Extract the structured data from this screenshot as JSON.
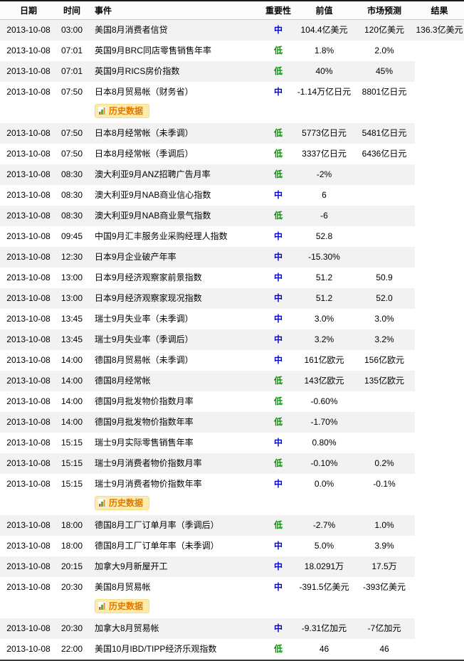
{
  "colors": {
    "importance_medium": "#0000cc",
    "importance_low": "#009900",
    "row_stripe": "#f2f2f2",
    "badge_background": "#fceba9",
    "badge_text": "#e07800"
  },
  "table": {
    "columns": {
      "date": "日期",
      "time": "时间",
      "event": "事件",
      "importance": "重要性",
      "previous": "前值",
      "forecast": "市场预测",
      "result": "结果"
    },
    "history_badge_label": "历史数据",
    "rows": [
      {
        "date": "2013-10-08",
        "time": "03:00",
        "event": "美国8月消费者信贷",
        "importance": "中",
        "previous": "104.4亿美元",
        "forecast": "120亿美元",
        "result": "136.3亿美元",
        "history": false
      },
      {
        "date": "2013-10-08",
        "time": "07:01",
        "event": "英国9月BRC同店零售销售年率",
        "importance": "低",
        "previous": "1.8%",
        "forecast": "2.0%",
        "result": "",
        "history": false
      },
      {
        "date": "2013-10-08",
        "time": "07:01",
        "event": "英国9月RICS房价指数",
        "importance": "低",
        "previous": "40%",
        "forecast": "45%",
        "result": "",
        "history": false
      },
      {
        "date": "2013-10-08",
        "time": "07:50",
        "event": "日本8月贸易帐（财务省）",
        "importance": "中",
        "previous": "-1.14万亿日元",
        "forecast": "8801亿日元",
        "result": "",
        "history": true
      },
      {
        "date": "2013-10-08",
        "time": "07:50",
        "event": "日本8月经常帐（未季调）",
        "importance": "低",
        "previous": "5773亿日元",
        "forecast": "5481亿日元",
        "result": "",
        "history": false
      },
      {
        "date": "2013-10-08",
        "time": "07:50",
        "event": "日本8月经常帐（季调后）",
        "importance": "低",
        "previous": "3337亿日元",
        "forecast": "6436亿日元",
        "result": "",
        "history": false
      },
      {
        "date": "2013-10-08",
        "time": "08:30",
        "event": "澳大利亚9月ANZ招聘广告月率",
        "importance": "低",
        "previous": "-2%",
        "forecast": "",
        "result": "",
        "history": false
      },
      {
        "date": "2013-10-08",
        "time": "08:30",
        "event": "澳大利亚9月NAB商业信心指数",
        "importance": "中",
        "previous": "6",
        "forecast": "",
        "result": "",
        "history": false
      },
      {
        "date": "2013-10-08",
        "time": "08:30",
        "event": "澳大利亚9月NAB商业景气指数",
        "importance": "低",
        "previous": "-6",
        "forecast": "",
        "result": "",
        "history": false
      },
      {
        "date": "2013-10-08",
        "time": "09:45",
        "event": "中国9月汇丰服务业采购经理人指数",
        "importance": "中",
        "previous": "52.8",
        "forecast": "",
        "result": "",
        "history": false
      },
      {
        "date": "2013-10-08",
        "time": "12:30",
        "event": "日本9月企业破产年率",
        "importance": "中",
        "previous": "-15.30%",
        "forecast": "",
        "result": "",
        "history": false
      },
      {
        "date": "2013-10-08",
        "time": "13:00",
        "event": "日本9月经济观察家前景指数",
        "importance": "中",
        "previous": "51.2",
        "forecast": "50.9",
        "result": "",
        "history": false
      },
      {
        "date": "2013-10-08",
        "time": "13:00",
        "event": "日本9月经济观察家现况指数",
        "importance": "中",
        "previous": "51.2",
        "forecast": "52.0",
        "result": "",
        "history": false
      },
      {
        "date": "2013-10-08",
        "time": "13:45",
        "event": "瑞士9月失业率（未季调）",
        "importance": "中",
        "previous": "3.0%",
        "forecast": "3.0%",
        "result": "",
        "history": false
      },
      {
        "date": "2013-10-08",
        "time": "13:45",
        "event": "瑞士9月失业率（季调后）",
        "importance": "中",
        "previous": "3.2%",
        "forecast": "3.2%",
        "result": "",
        "history": false
      },
      {
        "date": "2013-10-08",
        "time": "14:00",
        "event": "德国8月贸易帐（未季调）",
        "importance": "中",
        "previous": "161亿欧元",
        "forecast": "156亿欧元",
        "result": "",
        "history": false
      },
      {
        "date": "2013-10-08",
        "time": "14:00",
        "event": "德国8月经常帐",
        "importance": "低",
        "previous": "143亿欧元",
        "forecast": "135亿欧元",
        "result": "",
        "history": false
      },
      {
        "date": "2013-10-08",
        "time": "14:00",
        "event": "德国9月批发物价指数月率",
        "importance": "低",
        "previous": "-0.60%",
        "forecast": "",
        "result": "",
        "history": false
      },
      {
        "date": "2013-10-08",
        "time": "14:00",
        "event": "德国9月批发物价指数年率",
        "importance": "低",
        "previous": "-1.70%",
        "forecast": "",
        "result": "",
        "history": false
      },
      {
        "date": "2013-10-08",
        "time": "15:15",
        "event": "瑞士9月实际零售销售年率",
        "importance": "中",
        "previous": "0.80%",
        "forecast": "",
        "result": "",
        "history": false
      },
      {
        "date": "2013-10-08",
        "time": "15:15",
        "event": "瑞士9月消费者物价指数月率",
        "importance": "低",
        "previous": "-0.10%",
        "forecast": "0.2%",
        "result": "",
        "history": false
      },
      {
        "date": "2013-10-08",
        "time": "15:15",
        "event": "瑞士9月消费者物价指数年率",
        "importance": "中",
        "previous": "0.0%",
        "forecast": "-0.1%",
        "result": "",
        "history": true
      },
      {
        "date": "2013-10-08",
        "time": "18:00",
        "event": "德国8月工厂订单月率（季调后）",
        "importance": "低",
        "previous": "-2.7%",
        "forecast": "1.0%",
        "result": "",
        "history": false
      },
      {
        "date": "2013-10-08",
        "time": "18:00",
        "event": "德国8月工厂订单年率（未季调）",
        "importance": "中",
        "previous": "5.0%",
        "forecast": "3.9%",
        "result": "",
        "history": false
      },
      {
        "date": "2013-10-08",
        "time": "20:15",
        "event": "加拿大9月新屋开工",
        "importance": "中",
        "previous": "18.0291万",
        "forecast": "17.5万",
        "result": "",
        "history": false
      },
      {
        "date": "2013-10-08",
        "time": "20:30",
        "event": "美国8月贸易帐",
        "importance": "中",
        "previous": "-391.5亿美元",
        "forecast": "-393亿美元",
        "result": "",
        "history": true
      },
      {
        "date": "2013-10-08",
        "time": "20:30",
        "event": "加拿大8月贸易帐",
        "importance": "中",
        "previous": "-9.31亿加元",
        "forecast": "-7亿加元",
        "result": "",
        "history": false
      },
      {
        "date": "2013-10-08",
        "time": "22:00",
        "event": "美国10月IBD/TIPP经济乐观指数",
        "importance": "低",
        "previous": "46",
        "forecast": "46",
        "result": "",
        "history": false
      }
    ]
  }
}
